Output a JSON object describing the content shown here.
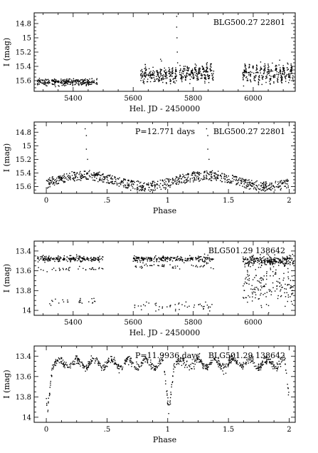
{
  "chart_data": [
    {
      "type": "scatter",
      "star": "BLG500.27 22801",
      "period_label": "",
      "xlabel": "Hel. JD - 2450000",
      "ylabel": "I (mag)",
      "xlim": [
        5270,
        6140
      ],
      "ylim": [
        15.75,
        14.65
      ],
      "y_inverted": true,
      "xticks": [
        5400,
        5600,
        5800,
        6000
      ],
      "yticks": [
        14.8,
        15,
        15.2,
        15.4,
        15.6
      ],
      "series": [
        {
          "x_range": [
            5280,
            5480
          ],
          "y_center": 15.62,
          "y_spread": 0.05,
          "osc_amp": 0.0,
          "n": 260
        },
        {
          "x_range": [
            5625,
            5745
          ],
          "y_center": 15.52,
          "y_spread": 0.09,
          "osc_amp": 0.05,
          "n": 220
        },
        {
          "x_range": [
            5755,
            5870
          ],
          "y_center": 15.5,
          "y_spread": 0.08,
          "osc_amp": 0.06,
          "n": 220
        },
        {
          "x_range": [
            5965,
            6135
          ],
          "y_center": 15.5,
          "y_spread": 0.07,
          "osc_amp": 0.08,
          "n": 320
        }
      ],
      "outliers": [
        [
          5745,
          14.7
        ],
        [
          5745,
          14.85
        ],
        [
          5746,
          15.0
        ],
        [
          5747,
          15.2
        ],
        [
          5748,
          15.35
        ]
      ]
    },
    {
      "type": "scatter",
      "star": "BLG500.27 22801",
      "period_label": "P=12.771 days",
      "xlabel": "Phase",
      "ylabel": "I (mag)",
      "xlim": [
        -0.1,
        2.05
      ],
      "ylim": [
        15.7,
        14.65
      ],
      "y_inverted": true,
      "xticks": [
        0,
        0.5,
        1,
        1.5,
        2
      ],
      "xtick_labels": [
        "0",
        ".5",
        "1",
        "1.5",
        "2"
      ],
      "yticks": [
        14.8,
        15,
        15.2,
        15.4,
        15.6
      ],
      "curve": {
        "mean": 15.52,
        "amp": 0.08,
        "peak_phase": 0.32,
        "y_spread": 0.07,
        "n_per_cycle": 420
      },
      "outliers": [
        [
          0.32,
          14.75
        ],
        [
          0.33,
          14.85
        ],
        [
          0.33,
          15.05
        ],
        [
          0.34,
          15.2
        ],
        [
          1.32,
          14.75
        ],
        [
          1.33,
          14.85
        ],
        [
          1.33,
          15.05
        ],
        [
          1.34,
          15.2
        ]
      ]
    },
    {
      "type": "scatter",
      "star": "BLG501.29 138642",
      "period_label": "",
      "xlabel": "Hel. JD - 2450000",
      "ylabel": "I (mag)",
      "xlim": [
        5270,
        6140
      ],
      "ylim": [
        14.05,
        13.3
      ],
      "y_inverted": true,
      "xticks": [
        5400,
        5600,
        5800,
        6000
      ],
      "yticks": [
        13.4,
        13.6,
        13.8,
        14
      ],
      "series": [
        {
          "x_range": [
            5280,
            5500
          ],
          "y_center": 13.48,
          "y_spread": 0.03,
          "osc_amp": 0.0,
          "n": 200
        },
        {
          "x_range": [
            5280,
            5500
          ],
          "y_center": 13.58,
          "y_spread": 0.02,
          "osc_amp": 0.0,
          "n": 35
        },
        {
          "x_range": [
            5320,
            5480
          ],
          "y_center": 13.91,
          "y_spread": 0.03,
          "osc_amp": 0.0,
          "n": 25
        },
        {
          "x_range": [
            5600,
            5870
          ],
          "y_center": 13.48,
          "y_spread": 0.03,
          "osc_amp": 0.0,
          "n": 230
        },
        {
          "x_range": [
            5600,
            5870
          ],
          "y_center": 13.55,
          "y_spread": 0.03,
          "osc_amp": 0.0,
          "n": 45
        },
        {
          "x_range": [
            5600,
            5870
          ],
          "y_center": 13.96,
          "y_spread": 0.04,
          "osc_amp": 0.0,
          "n": 50
        },
        {
          "x_range": [
            5965,
            6135
          ],
          "y_center": 13.5,
          "y_spread": 0.05,
          "osc_amp": 0.0,
          "n": 260
        },
        {
          "x_range": [
            5965,
            6135
          ],
          "y_center": 13.75,
          "y_spread": 0.22,
          "osc_amp": 0.0,
          "n": 160
        }
      ],
      "outliers": []
    },
    {
      "type": "scatter",
      "star": "BLG501.29 138642",
      "period_label": "P=11.9936 days",
      "xlabel": "Phase",
      "ylabel": "I (mag)",
      "xlim": [
        -0.1,
        2.05
      ],
      "ylim": [
        14.05,
        13.3
      ],
      "y_inverted": true,
      "xticks": [
        0,
        0.5,
        1,
        1.5,
        2
      ],
      "xtick_labels": [
        "0",
        ".5",
        "1",
        "1.5",
        "2"
      ],
      "yticks": [
        13.4,
        13.6,
        13.8,
        14
      ],
      "eclipse": {
        "max_mag": 13.47,
        "min_mag": 13.95,
        "eclipse_phase": 0.01,
        "y_spread": 0.04,
        "n_per_cycle": 380
      }
    }
  ]
}
